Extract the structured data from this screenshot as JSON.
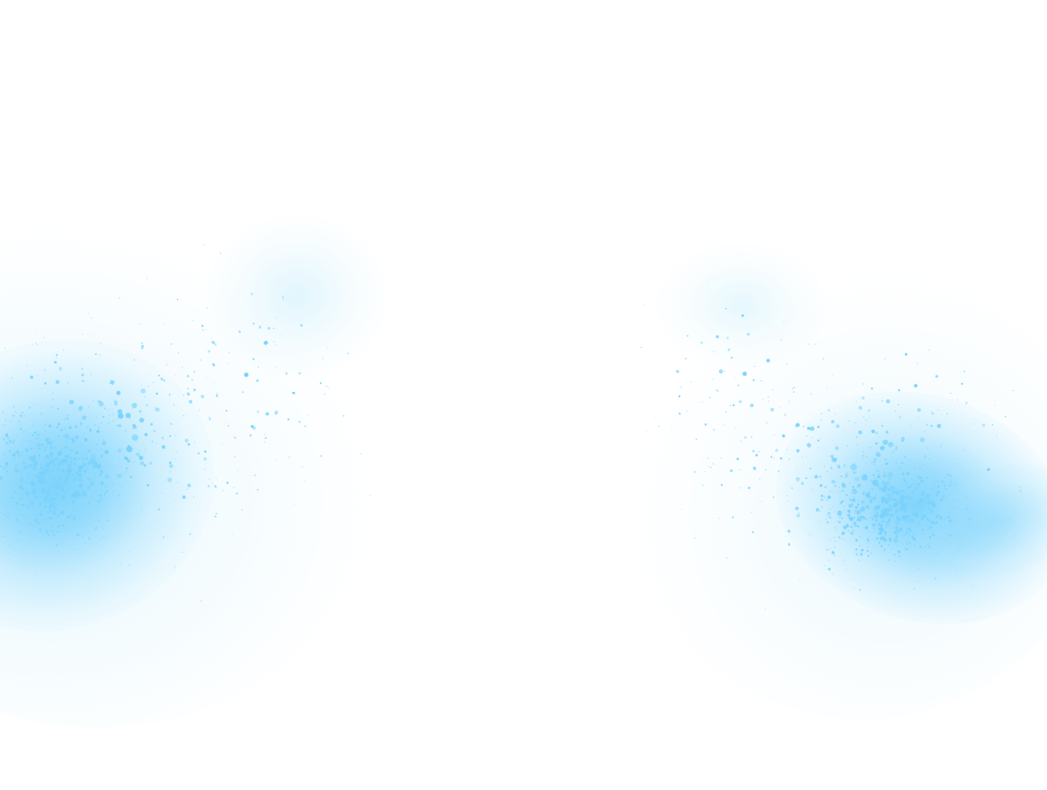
{
  "image": {
    "kind": "paint-splatter",
    "background_color": "#ffffff",
    "splatter_color": "#7ad2fc",
    "haze_color": "#d6f2fc",
    "clouds": [
      {
        "name": "left-splatter",
        "side": "left"
      },
      {
        "name": "right-splatter",
        "side": "right"
      }
    ]
  }
}
